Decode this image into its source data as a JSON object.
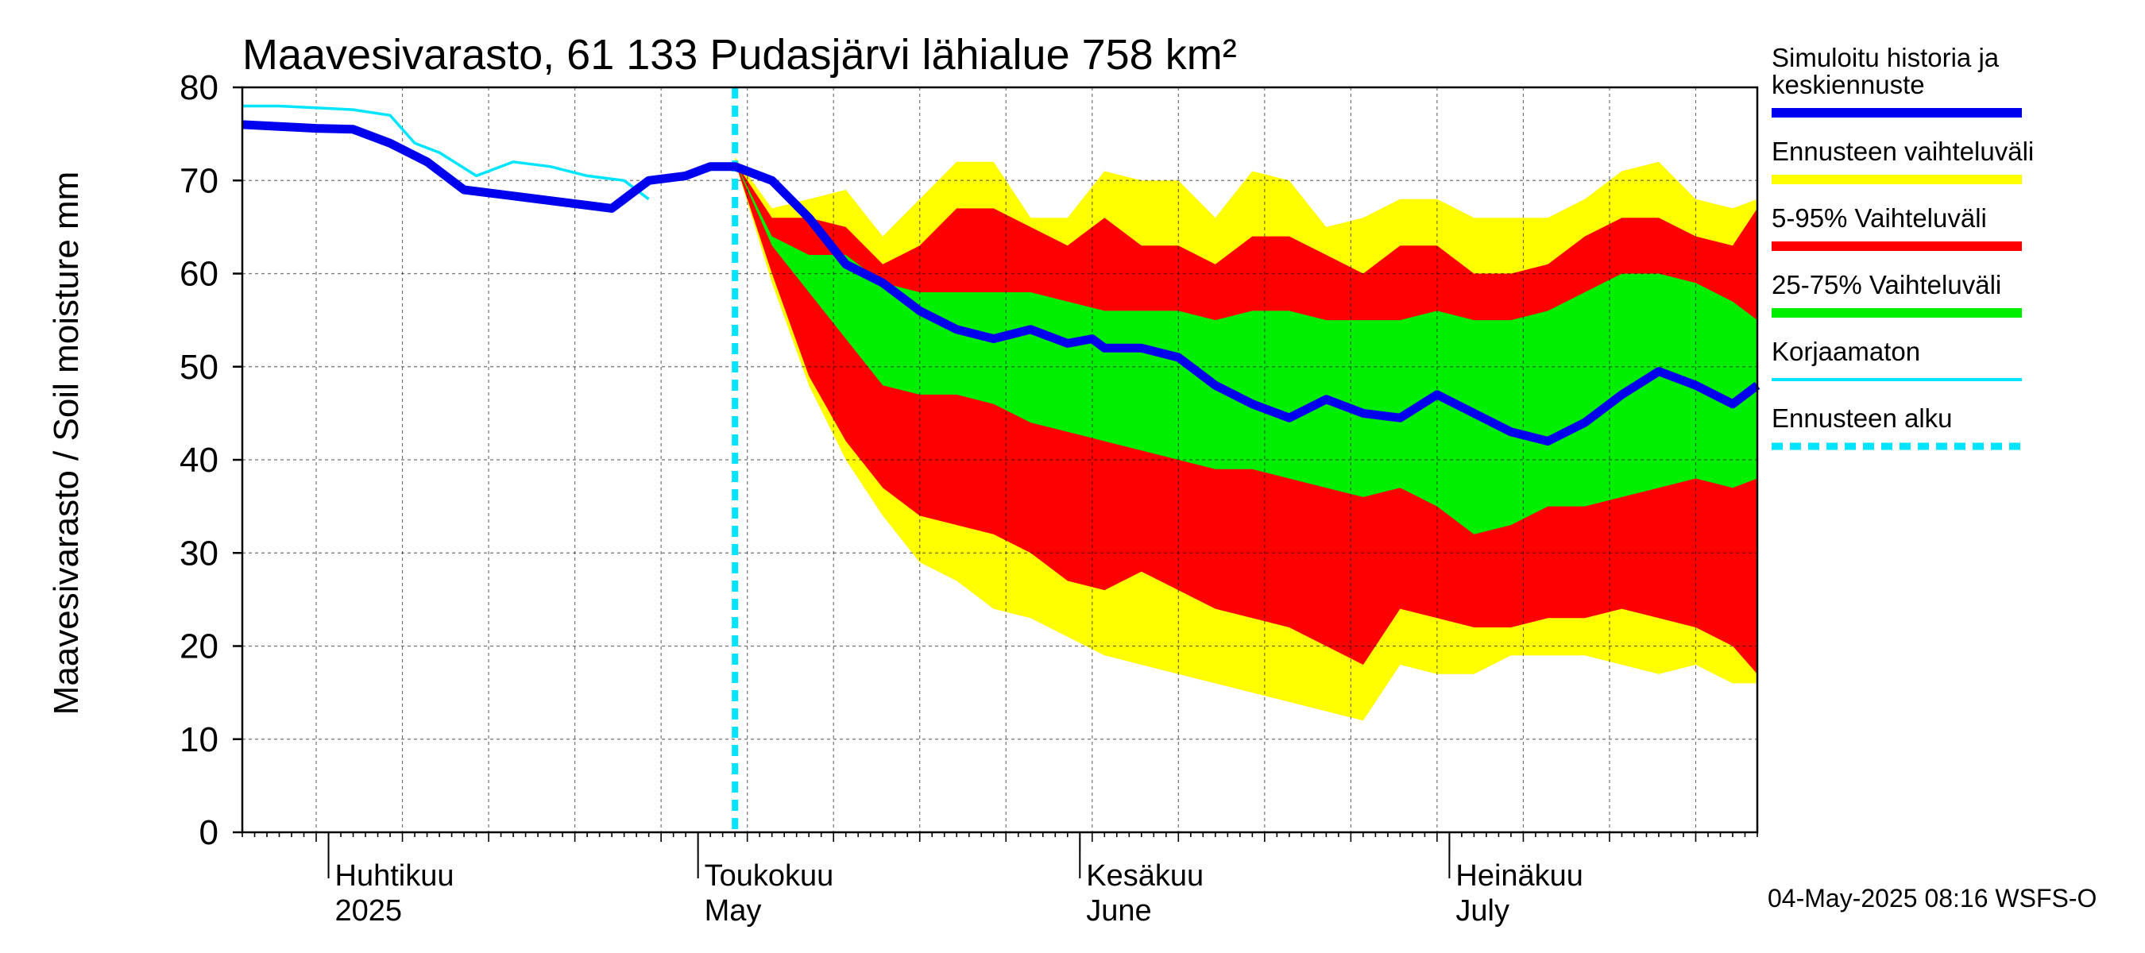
{
  "chart_data": {
    "type": "area",
    "title": "Maavesivarasto, 61 133 Pudasjärvi lähialue 758 km²",
    "ylabel": "Maavesivarasto / Soil moisture   mm",
    "xlabel": "",
    "ylim": [
      0,
      80
    ],
    "yticks": [
      0,
      10,
      20,
      30,
      40,
      50,
      60,
      70,
      80
    ],
    "grid": true,
    "x_range": [
      "2025-03-25",
      "2025-07-26"
    ],
    "forecast_start": "2025-05-04",
    "x_labels": [
      {
        "date": "2025-04-01",
        "fi": "Huhtikuu",
        "en": "2025"
      },
      {
        "date": "2025-05-01",
        "fi": "Toukokuu",
        "en": "May"
      },
      {
        "date": "2025-06-01",
        "fi": "Kesäkuu",
        "en": "June"
      },
      {
        "date": "2025-07-01",
        "fi": "Heinäkuu",
        "en": "July"
      }
    ],
    "legend_placement": "right",
    "legend": [
      {
        "key": "sim",
        "label_lines": [
          "Simuloitu historia ja",
          "keskiennuste"
        ],
        "color": "#0000ee",
        "style": "thick"
      },
      {
        "key": "range",
        "label_lines": [
          "Ennusteen vaihteluväli"
        ],
        "color": "#ffff00",
        "style": "thick"
      },
      {
        "key": "p5_95",
        "label_lines": [
          "5-95% Vaihteluväli"
        ],
        "color": "#ff0000",
        "style": "thick"
      },
      {
        "key": "p25_75",
        "label_lines": [
          "25-75% Vaihteluväli"
        ],
        "color": "#00ee00",
        "style": "thick"
      },
      {
        "key": "raw",
        "label_lines": [
          "Korjaamaton"
        ],
        "color": "#00e5ff",
        "style": "thin"
      },
      {
        "key": "start",
        "label_lines": [
          "Ennusteen alku"
        ],
        "color": "#00e5ff",
        "style": "dashed"
      }
    ],
    "bands": {
      "dates": [
        "2025-05-04",
        "2025-05-07",
        "2025-05-10",
        "2025-05-13",
        "2025-05-16",
        "2025-05-19",
        "2025-05-22",
        "2025-05-25",
        "2025-05-28",
        "2025-05-31",
        "2025-06-03",
        "2025-06-06",
        "2025-06-09",
        "2025-06-12",
        "2025-06-15",
        "2025-06-18",
        "2025-06-21",
        "2025-06-24",
        "2025-06-27",
        "2025-06-30",
        "2025-07-03",
        "2025-07-06",
        "2025-07-09",
        "2025-07-12",
        "2025-07-15",
        "2025-07-18",
        "2025-07-21",
        "2025-07-24",
        "2025-07-26"
      ],
      "range_max": [
        72.5,
        67,
        68,
        69,
        64,
        68,
        72,
        72,
        66,
        66,
        71,
        70,
        70,
        66,
        71,
        70,
        65,
        66,
        68,
        68,
        66,
        66,
        66,
        68,
        71,
        72,
        68,
        67,
        68
      ],
      "p5_95_max": [
        72,
        66,
        66,
        65,
        61,
        63,
        67,
        67,
        65,
        63,
        66,
        63,
        63,
        61,
        64,
        64,
        62,
        60,
        63,
        63,
        60,
        60,
        61,
        64,
        66,
        66,
        64,
        63,
        67
      ],
      "p25_75_max": [
        72,
        64,
        62,
        62,
        59,
        58,
        58,
        58,
        58,
        57,
        56,
        56,
        56,
        55,
        56,
        56,
        55,
        55,
        55,
        56,
        55,
        55,
        56,
        58,
        60,
        60,
        59,
        57,
        55
      ],
      "p25_75_min": [
        72,
        63,
        58,
        53,
        48,
        47,
        47,
        46,
        44,
        43,
        42,
        41,
        40,
        39,
        39,
        38,
        37,
        36,
        37,
        35,
        32,
        33,
        35,
        35,
        36,
        37,
        38,
        37,
        38
      ],
      "p5_95_min": [
        72,
        60,
        49,
        42,
        37,
        34,
        33,
        32,
        30,
        27,
        26,
        28,
        26,
        24,
        23,
        22,
        20,
        18,
        24,
        23,
        22,
        22,
        23,
        23,
        24,
        23,
        22,
        20,
        17
      ],
      "range_min": [
        72,
        59,
        48,
        40,
        34,
        29,
        27,
        24,
        23,
        21,
        19,
        18,
        17,
        16,
        15,
        14,
        13,
        12,
        18,
        17,
        17,
        19,
        19,
        19,
        18,
        17,
        18,
        16,
        16
      ]
    },
    "series": [
      {
        "name": "Simuloitu historia ja keskiennuste",
        "x": [
          "2025-03-25",
          "2025-03-28",
          "2025-03-31",
          "2025-04-03",
          "2025-04-06",
          "2025-04-09",
          "2025-04-12",
          "2025-04-15",
          "2025-04-18",
          "2025-04-21",
          "2025-04-24",
          "2025-04-25",
          "2025-04-27",
          "2025-04-30",
          "2025-05-02",
          "2025-05-04",
          "2025-05-07",
          "2025-05-10",
          "2025-05-13",
          "2025-05-16",
          "2025-05-19",
          "2025-05-22",
          "2025-05-25",
          "2025-05-28",
          "2025-05-31",
          "2025-06-02",
          "2025-06-03",
          "2025-06-06",
          "2025-06-09",
          "2025-06-12",
          "2025-06-15",
          "2025-06-18",
          "2025-06-21",
          "2025-06-24",
          "2025-06-27",
          "2025-06-30",
          "2025-07-03",
          "2025-07-06",
          "2025-07-09",
          "2025-07-12",
          "2025-07-15",
          "2025-07-18",
          "2025-07-21",
          "2025-07-24",
          "2025-07-26"
        ],
        "y": [
          76,
          75.8,
          75.6,
          75.5,
          74,
          72,
          69,
          68.5,
          68,
          67.5,
          67,
          68,
          70,
          70.5,
          71.5,
          71.5,
          70,
          66,
          61,
          59,
          56,
          54,
          53,
          54,
          52.5,
          53,
          52,
          52,
          51,
          48,
          46,
          44.5,
          46.5,
          45,
          44.5,
          47,
          45,
          43,
          42,
          44,
          47,
          49.5,
          48,
          46,
          48
        ]
      },
      {
        "name": "Korjaamaton",
        "x": [
          "2025-03-25",
          "2025-03-28",
          "2025-03-31",
          "2025-04-03",
          "2025-04-06",
          "2025-04-08",
          "2025-04-10",
          "2025-04-13",
          "2025-04-16",
          "2025-04-19",
          "2025-04-22",
          "2025-04-25",
          "2025-04-27"
        ],
        "y": [
          78,
          78,
          77.8,
          77.6,
          77,
          74,
          73,
          70.5,
          72,
          71.5,
          70.5,
          70,
          68
        ]
      }
    ]
  },
  "footer": "04-May-2025 08:16 WSFS-O"
}
